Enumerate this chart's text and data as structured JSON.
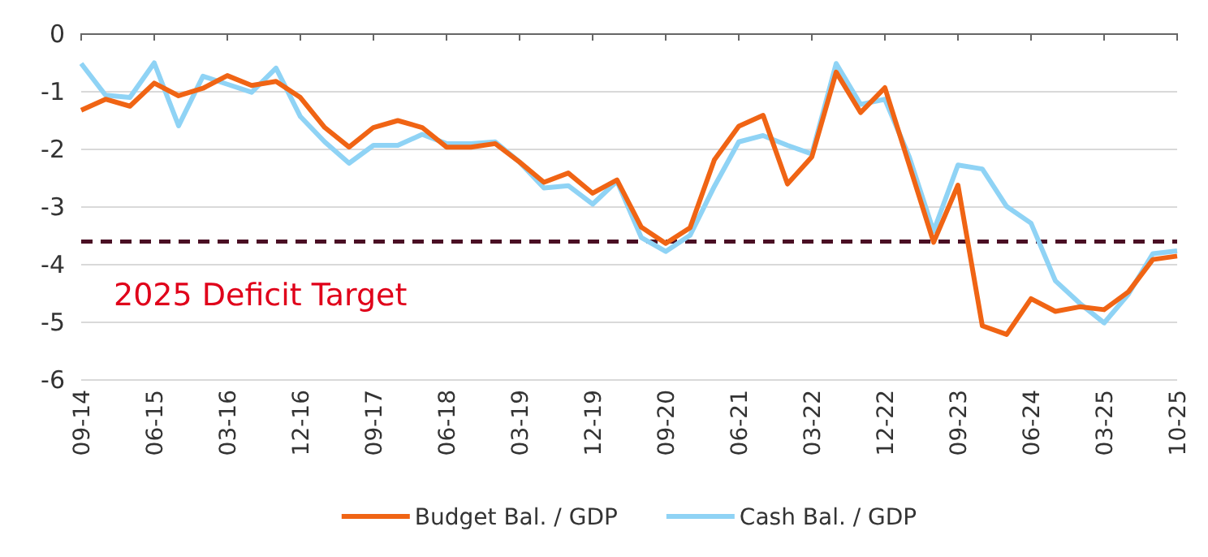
{
  "chart_data": {
    "type": "line",
    "categories": [
      "09-14",
      null,
      null,
      "06-15",
      null,
      null,
      "03-16",
      null,
      null,
      "12-16",
      null,
      null,
      "09-17",
      null,
      null,
      "06-18",
      null,
      null,
      "03-19",
      null,
      null,
      "12-19",
      null,
      null,
      "09-20",
      null,
      null,
      "06-21",
      null,
      null,
      "03-22",
      null,
      null,
      "12-22",
      null,
      null,
      "09-23",
      null,
      null,
      "06-24",
      null,
      null,
      "03-25",
      null,
      null,
      "10-25"
    ],
    "series": [
      {
        "name": "Budget Bal. / GDP",
        "color": "#f06414",
        "values": [
          -1.32,
          -1.13,
          -1.25,
          -0.85,
          -1.07,
          -0.94,
          -0.72,
          -0.89,
          -0.82,
          -1.1,
          -1.62,
          -1.96,
          -1.62,
          -1.5,
          -1.62,
          -1.96,
          -1.96,
          -1.9,
          -2.22,
          -2.57,
          -2.41,
          -2.76,
          -2.53,
          -3.35,
          -3.63,
          -3.36,
          -2.18,
          -1.6,
          -1.41,
          -2.6,
          -2.13,
          -0.66,
          -1.36,
          -0.93,
          -2.27,
          -3.61,
          -2.62,
          -5.06,
          -5.21,
          -4.59,
          -4.81,
          -4.73,
          -4.78,
          -4.47,
          -3.91,
          -3.85
        ]
      },
      {
        "name": "Cash Bal. / GDP",
        "color": "#8fd3f5",
        "values": [
          -0.51,
          -1.06,
          -1.1,
          -0.5,
          -1.59,
          -0.73,
          -0.87,
          -1.01,
          -0.59,
          -1.43,
          -1.87,
          -2.24,
          -1.93,
          -1.93,
          -1.74,
          -1.9,
          -1.9,
          -1.87,
          -2.22,
          -2.67,
          -2.63,
          -2.95,
          -2.55,
          -3.53,
          -3.77,
          -3.49,
          -2.64,
          -1.87,
          -1.76,
          -1.93,
          -2.08,
          -0.51,
          -1.22,
          -1.13,
          -2.13,
          -3.42,
          -2.27,
          -2.34,
          -2.99,
          -3.28,
          -4.28,
          -4.67,
          -5.01,
          -4.51,
          -3.81,
          -3.76
        ]
      }
    ],
    "ylim": [
      -6,
      0
    ],
    "yticks": [
      0,
      -1,
      -2,
      -3,
      -4,
      -5,
      -6
    ],
    "grid": "y",
    "legend": "bottom",
    "ref_lines": [
      {
        "axis": "y",
        "value": -3.6,
        "label": "2025 Deficit Target",
        "color": "#4a0f24",
        "line_style": "dashed"
      }
    ]
  }
}
